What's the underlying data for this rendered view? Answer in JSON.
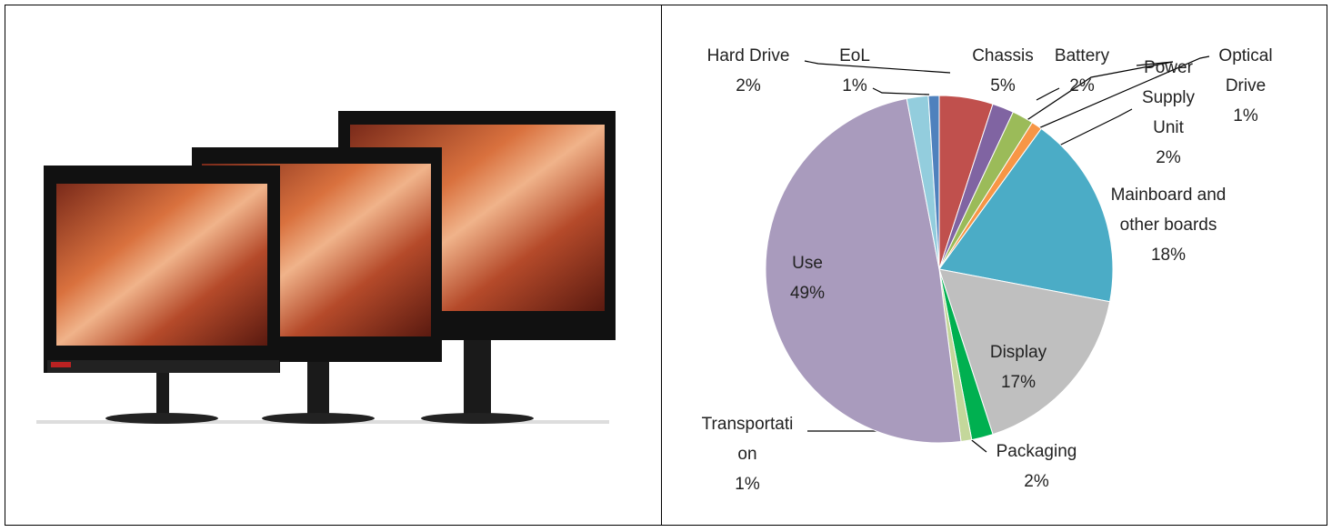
{
  "chart_data": {
    "type": "pie",
    "categories": [
      "Chassis",
      "Battery",
      "Power Supply Unit",
      "Optical Drive",
      "Mainboard and other boards",
      "Display",
      "Packaging",
      "Transportation",
      "Use",
      "Hard Drive",
      "EoL"
    ],
    "values": [
      5,
      2,
      2,
      1,
      18,
      17,
      2,
      1,
      49,
      2,
      1
    ],
    "value_labels": [
      "5%",
      "2%",
      "2%",
      "1%",
      "18%",
      "17%",
      "2%",
      "1%",
      "49%",
      "2%",
      "1%"
    ],
    "colors": [
      "#c0504d",
      "#8064a2",
      "#9bbb59",
      "#f79646",
      "#4bacc6",
      "#bfbfbf",
      "#00b050",
      "#c4d79b",
      "#a99bbd",
      "#93cddd",
      "#4f81bd"
    ]
  }
}
